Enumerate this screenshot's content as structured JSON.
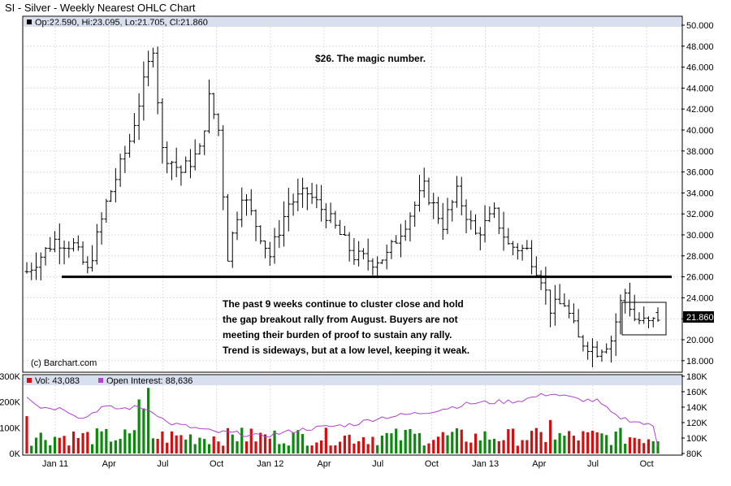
{
  "title": "SI - Silver - Weekly Nearest OHLC Chart",
  "ohlc_readout": "Op:22.590, Hi:23.095, Lo:21.705, Cl:21.860",
  "copyright": "(c) Barchart.com",
  "last_price_label": "21.860",
  "annotation_top": "$26.  The magic number.",
  "annotation_body": [
    "The past 9 weeks continue to cluster close and hold",
    "the gap breakout rally from August.  Buyers are not",
    "meeting their burden of proof to sustain any rally.",
    "Trend is sideways, but at a low level, keeping it weak."
  ],
  "vol_legend": "Vol: 43,083",
  "oi_legend": "Open Interest: 88,636",
  "colors": {
    "up_volume": "#0a8a0a",
    "down_volume": "#d01010",
    "open_interest": "#b040d0",
    "header_bar": "#d8e0f0",
    "price_bar": "#000000"
  },
  "chart_data": [
    {
      "type": "ohlc",
      "title": "SI - Silver - Weekly Nearest OHLC Chart",
      "y_ticks": [
        "50.000",
        "48.000",
        "46.000",
        "44.000",
        "42.000",
        "40.000",
        "38.000",
        "36.000",
        "34.000",
        "32.000",
        "30.000",
        "28.000",
        "26.000",
        "24.000",
        "22.000",
        "20.000",
        "18.000"
      ],
      "ylim": [
        17,
        50.2
      ],
      "x_ticks": [
        "Jan 11",
        "Apr",
        "Jul",
        "Oct",
        "Jan 12",
        "Apr",
        "Jul",
        "Oct",
        "Jan 13",
        "Apr",
        "Jul",
        "Oct"
      ],
      "support_level": 26,
      "anchors": [
        {
          "week": 0,
          "price": 26.5
        },
        {
          "week": 6,
          "price": 29.5
        },
        {
          "week": 10,
          "price": 29
        },
        {
          "week": 13,
          "price": 26.5
        },
        {
          "week": 17,
          "price": 33
        },
        {
          "week": 22,
          "price": 39
        },
        {
          "week": 27,
          "price": 48
        },
        {
          "week": 29,
          "price": 38
        },
        {
          "week": 33,
          "price": 36
        },
        {
          "week": 37,
          "price": 38
        },
        {
          "week": 39,
          "price": 43
        },
        {
          "week": 41,
          "price": 40
        },
        {
          "week": 43,
          "price": 28
        },
        {
          "week": 46,
          "price": 34
        },
        {
          "week": 49,
          "price": 31
        },
        {
          "week": 52,
          "price": 28
        },
        {
          "week": 56,
          "price": 33
        },
        {
          "week": 60,
          "price": 34
        },
        {
          "week": 64,
          "price": 32
        },
        {
          "week": 70,
          "price": 28
        },
        {
          "week": 74,
          "price": 27.5
        },
        {
          "week": 77,
          "price": 28
        },
        {
          "week": 82,
          "price": 32
        },
        {
          "week": 85,
          "price": 34.5
        },
        {
          "week": 89,
          "price": 31
        },
        {
          "week": 92,
          "price": 34
        },
        {
          "week": 96,
          "price": 30
        },
        {
          "week": 100,
          "price": 32
        },
        {
          "week": 103,
          "price": 29
        },
        {
          "week": 107,
          "price": 28.5
        },
        {
          "week": 110,
          "price": 26
        },
        {
          "week": 112,
          "price": 23
        },
        {
          "week": 115,
          "price": 23.5
        },
        {
          "week": 118,
          "price": 20
        },
        {
          "week": 122,
          "price": 19
        },
        {
          "week": 125,
          "price": 20
        },
        {
          "week": 127,
          "price": 23.5
        },
        {
          "week": 128,
          "price": 24.5
        },
        {
          "week": 130,
          "price": 22
        },
        {
          "week": 133,
          "price": 21.5
        },
        {
          "week": 135,
          "price": 21.86
        }
      ],
      "last_bar": {
        "open": 22.59,
        "high": 23.095,
        "low": 21.705,
        "close": 21.86
      }
    },
    {
      "type": "bar",
      "title": "Volume / Open Interest",
      "y_ticks_left": [
        "300K",
        "200K",
        "100K",
        "0K"
      ],
      "y_ticks_right": [
        "180K",
        "160K",
        "140K",
        "120K",
        "100K",
        "80K"
      ],
      "volume_ylim": [
        0,
        300
      ],
      "oi_ylim": [
        80,
        180
      ],
      "oi_anchors": [
        {
          "week": 0,
          "price": 155
        },
        {
          "week": 3,
          "price": 140
        },
        {
          "week": 8,
          "price": 138
        },
        {
          "week": 12,
          "price": 125
        },
        {
          "week": 16,
          "price": 140
        },
        {
          "week": 20,
          "price": 138
        },
        {
          "week": 24,
          "price": 140
        },
        {
          "week": 27,
          "price": 135
        },
        {
          "week": 30,
          "price": 120
        },
        {
          "week": 40,
          "price": 108
        },
        {
          "week": 45,
          "price": 106
        },
        {
          "week": 50,
          "price": 102
        },
        {
          "week": 60,
          "price": 112
        },
        {
          "week": 70,
          "price": 118
        },
        {
          "week": 75,
          "price": 126
        },
        {
          "week": 85,
          "price": 133
        },
        {
          "week": 95,
          "price": 145
        },
        {
          "week": 105,
          "price": 148
        },
        {
          "week": 112,
          "price": 158
        },
        {
          "week": 118,
          "price": 150
        },
        {
          "week": 122,
          "price": 148
        },
        {
          "week": 126,
          "price": 128
        },
        {
          "week": 130,
          "price": 122
        },
        {
          "week": 134,
          "price": 115
        },
        {
          "week": 135,
          "price": 88.6
        }
      ],
      "volume_spikes": [
        {
          "week": 26,
          "value": 255
        },
        {
          "week": 25,
          "value": 175
        },
        {
          "week": 24,
          "value": 210
        },
        {
          "week": 0,
          "value": 145
        },
        {
          "week": 46,
          "value": 100
        },
        {
          "week": 82,
          "value": 95
        },
        {
          "week": 112,
          "value": 130
        }
      ]
    }
  ]
}
